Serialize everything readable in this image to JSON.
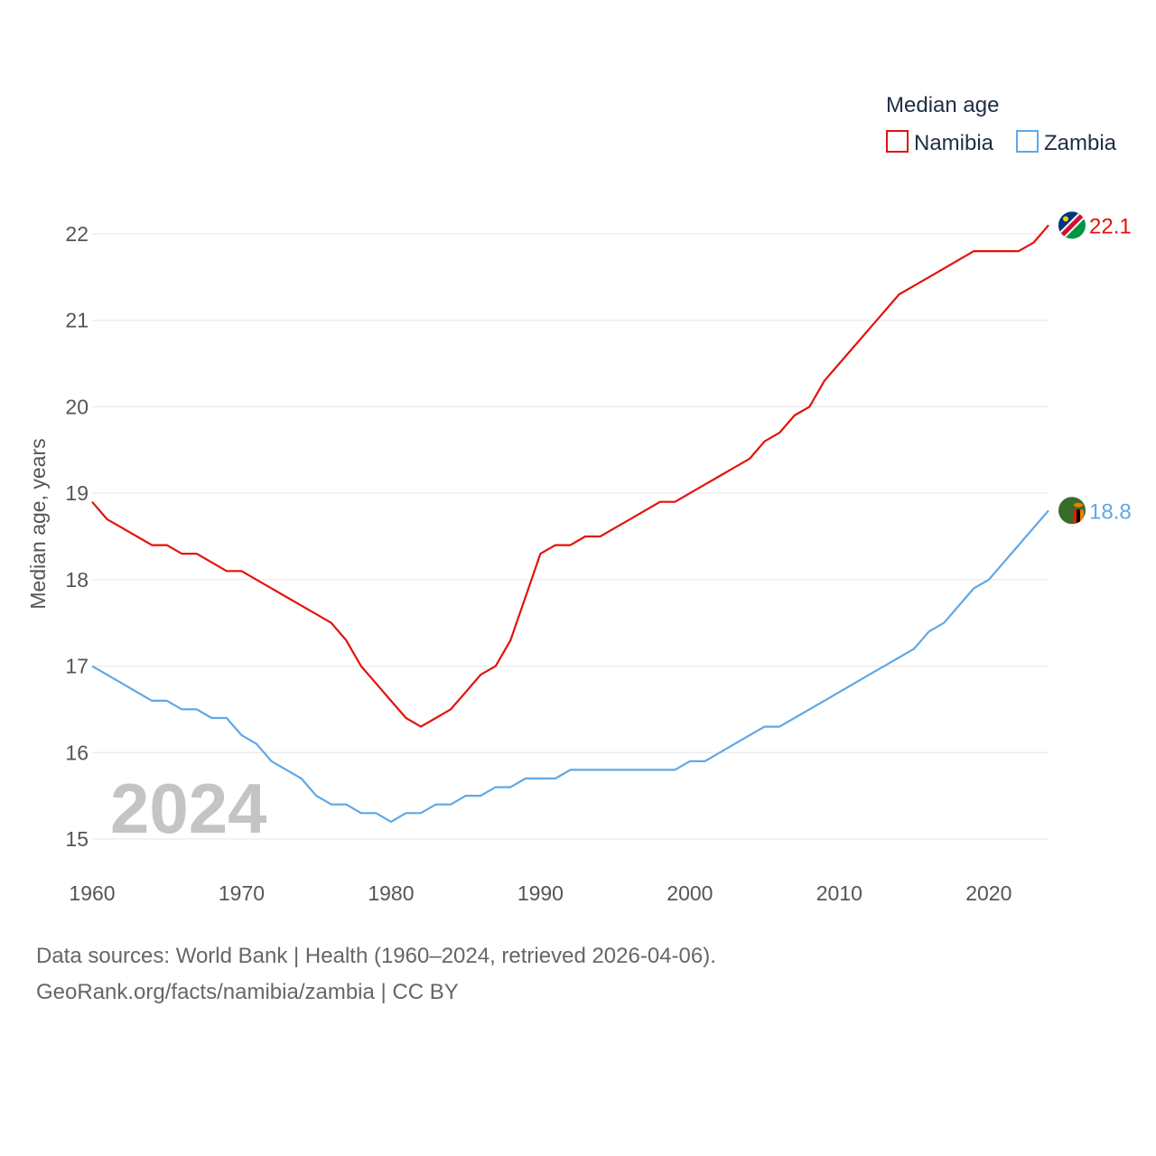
{
  "chart_data": {
    "type": "line",
    "ylabel": "Median age, years",
    "xlabel": "",
    "xlim": [
      1960,
      2024
    ],
    "ylim": [
      15,
      22
    ],
    "x_ticks": [
      1960,
      1970,
      1980,
      1990,
      2000,
      2010,
      2020
    ],
    "y_ticks": [
      15,
      16,
      17,
      18,
      19,
      20,
      21,
      22
    ],
    "grid": true,
    "legend": {
      "title": "Median age",
      "placement": "top-right"
    },
    "year_label": "2024",
    "x": [
      1960,
      1961,
      1962,
      1963,
      1964,
      1965,
      1966,
      1967,
      1968,
      1969,
      1970,
      1971,
      1972,
      1973,
      1974,
      1975,
      1976,
      1977,
      1978,
      1979,
      1980,
      1981,
      1982,
      1983,
      1984,
      1985,
      1986,
      1987,
      1988,
      1989,
      1990,
      1991,
      1992,
      1993,
      1994,
      1995,
      1996,
      1997,
      1998,
      1999,
      2000,
      2001,
      2002,
      2003,
      2004,
      2005,
      2006,
      2007,
      2008,
      2009,
      2010,
      2011,
      2012,
      2013,
      2014,
      2015,
      2016,
      2017,
      2018,
      2019,
      2020,
      2021,
      2022,
      2023,
      2024
    ],
    "series": [
      {
        "name": "Namibia",
        "color": "#e3120b",
        "end_label": "22.1",
        "flag": "namibia-flag-icon",
        "values": [
          18.9,
          18.7,
          18.6,
          18.5,
          18.4,
          18.4,
          18.3,
          18.3,
          18.2,
          18.1,
          18.1,
          18.0,
          17.9,
          17.8,
          17.7,
          17.6,
          17.5,
          17.3,
          17.0,
          16.8,
          16.6,
          16.4,
          16.3,
          16.4,
          16.5,
          16.7,
          16.9,
          17.0,
          17.3,
          17.8,
          18.3,
          18.4,
          18.4,
          18.5,
          18.5,
          18.6,
          18.7,
          18.8,
          18.9,
          18.9,
          19.0,
          19.1,
          19.2,
          19.3,
          19.4,
          19.6,
          19.7,
          19.9,
          20.0,
          20.3,
          20.5,
          20.7,
          20.9,
          21.1,
          21.3,
          21.4,
          21.5,
          21.6,
          21.7,
          21.8,
          21.8,
          21.8,
          21.8,
          21.9,
          22.1
        ]
      },
      {
        "name": "Zambia",
        "color": "#5fa8e6",
        "end_label": "18.8",
        "flag": "zambia-flag-icon",
        "values": [
          17.0,
          16.9,
          16.8,
          16.7,
          16.6,
          16.6,
          16.5,
          16.5,
          16.4,
          16.4,
          16.2,
          16.1,
          15.9,
          15.8,
          15.7,
          15.5,
          15.4,
          15.4,
          15.3,
          15.3,
          15.2,
          15.3,
          15.3,
          15.4,
          15.4,
          15.5,
          15.5,
          15.6,
          15.6,
          15.7,
          15.7,
          15.7,
          15.8,
          15.8,
          15.8,
          15.8,
          15.8,
          15.8,
          15.8,
          15.8,
          15.9,
          15.9,
          16.0,
          16.1,
          16.2,
          16.3,
          16.3,
          16.4,
          16.5,
          16.6,
          16.7,
          16.8,
          16.9,
          17.0,
          17.1,
          17.2,
          17.4,
          17.5,
          17.7,
          17.9,
          18.0,
          18.2,
          18.4,
          18.6,
          18.8
        ]
      }
    ]
  },
  "footer": {
    "sources": "Data sources: World Bank | Health (1960–2024, retrieved 2026-04-06).",
    "credit": "GeoRank.org/facts/namibia/zambia | CC BY"
  }
}
